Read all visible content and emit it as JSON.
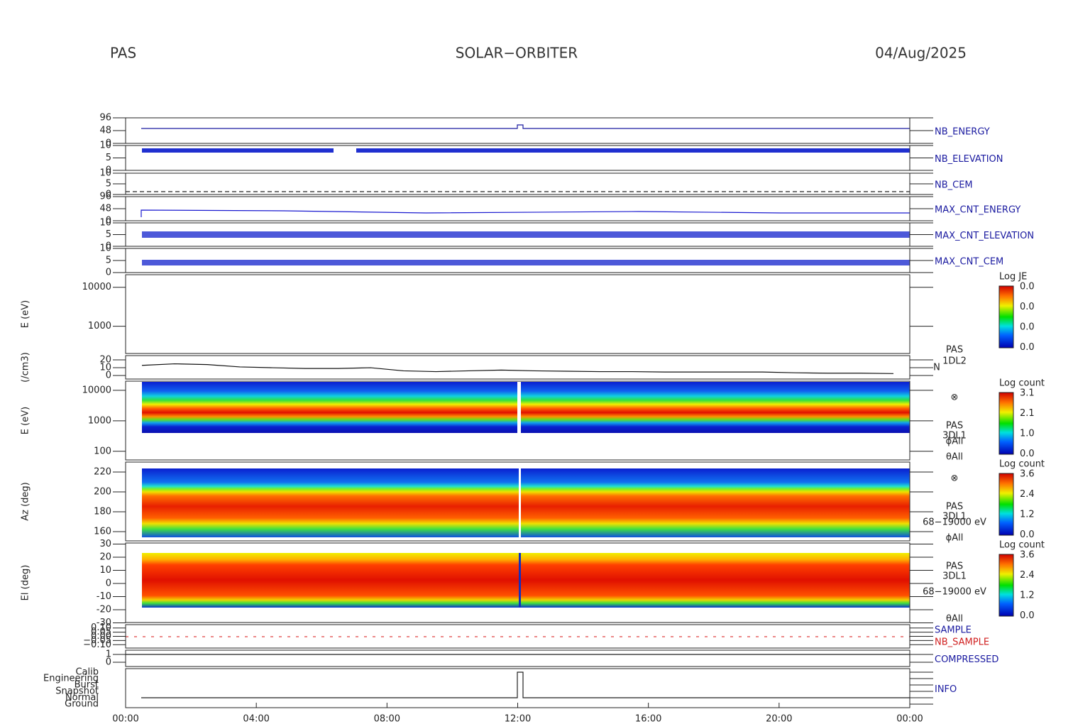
{
  "header": {
    "left": "PAS",
    "center": "SOLAR−ORBITER",
    "right": "04/Aug/2025"
  },
  "xticks": [
    "00:00",
    "04:00",
    "08:00",
    "12:00",
    "16:00",
    "20:00",
    "00:00"
  ],
  "panels": [
    {
      "label": "NB_ENERGY",
      "ylim": [
        0,
        96
      ],
      "yticks": [
        0,
        48,
        96
      ]
    },
    {
      "label": "NB_ELEVATION",
      "ylim": [
        0,
        10
      ],
      "yticks": [
        0,
        5,
        10
      ]
    },
    {
      "label": "NB_CEM",
      "ylim": [
        0,
        10
      ],
      "yticks": [
        0,
        5,
        10
      ]
    },
    {
      "label": "MAX_CNT_ENERGY",
      "ylim": [
        0,
        96
      ],
      "yticks": [
        0,
        48,
        96
      ]
    },
    {
      "label": "MAX_CNT_ELEVATION",
      "ylim": [
        0,
        10
      ],
      "yticks": [
        0,
        5,
        10
      ]
    },
    {
      "label": "MAX_CNT_CEM",
      "ylim": [
        0,
        10
      ],
      "yticks": [
        0,
        5,
        10
      ]
    },
    {
      "ylabel": "E (eV)",
      "log": true,
      "ylim": [
        200,
        21000
      ],
      "yticks": [
        1000,
        10000
      ],
      "colorbar": {
        "title": "Log JE",
        "labels": [
          "0.0",
          "0.0",
          "0.0",
          "0.0"
        ]
      }
    },
    {
      "ylabel": "(/cm3)",
      "ylim": [
        -4.5,
        25.5
      ],
      "yticks": [
        0,
        10,
        20
      ],
      "side": [
        "PAS",
        "1DL2",
        "N"
      ],
      "x": [
        0.5,
        1.5,
        2.5,
        3.5,
        4.5,
        5.5,
        6.5,
        7.5,
        8.5,
        9.5,
        10.5,
        11.5,
        12.5,
        13.5,
        14.5,
        15.5,
        16.5,
        17.5,
        18.5,
        19.5,
        20.5,
        21.5,
        22.5,
        23.5
      ],
      "values": [
        13,
        15,
        14,
        11,
        10,
        9,
        9,
        10,
        6,
        5,
        6,
        7,
        6,
        5.5,
        5,
        5,
        4.5,
        4.5,
        4.5,
        4.5,
        3.5,
        3,
        3,
        2.5
      ]
    },
    {
      "ylabel": "E (eV)",
      "log": true,
      "ylim": [
        52,
        20000
      ],
      "yticks": [
        100,
        1000,
        10000
      ],
      "side": [
        "⊗",
        "PAS",
        "3DL1",
        "ϕAll",
        "θAll"
      ],
      "colorbar": {
        "title": "Log count",
        "labels": [
          "3.1",
          "2.1",
          "1.0",
          "0.0"
        ]
      }
    },
    {
      "ylabel": "Az (deg)",
      "ylim": [
        150.7,
        230
      ],
      "yticks": [
        160,
        180,
        200,
        220
      ],
      "side": [
        "⊗",
        "PAS",
        "3DL1",
        "68−19000 eV",
        "ϕAll"
      ],
      "colorbar": {
        "title": "Log count",
        "labels": [
          "3.6",
          "2.4",
          "1.2",
          "0.0"
        ]
      }
    },
    {
      "ylabel": "El (deg)",
      "ylim": [
        -29.7,
        30.8
      ],
      "yticks": [
        -30,
        -20,
        -10,
        0,
        10,
        20,
        30
      ],
      "side": [
        "PAS",
        "3DL1",
        "68−19000 eV",
        "θAll"
      ],
      "colorbar": {
        "title": "Log count",
        "labels": [
          "3.6",
          "2.4",
          "1.2",
          "0.0"
        ]
      }
    },
    {
      "label": "SAMPLE",
      "label2": "NB_SAMPLE",
      "ylim": [
        -0.14,
        0.14
      ],
      "yticks": [
        {
          "value": -0.1,
          "label": "−0.10"
        },
        {
          "value": -0.05,
          "label": "−0.05"
        },
        {
          "value": 0,
          "label": "0.00"
        },
        {
          "value": 0.05,
          "label": "0.05"
        },
        {
          "value": 0.1,
          "label": "0.10"
        }
      ]
    },
    {
      "label": "COMPRESSED",
      "ylim": [
        -0.55,
        1.55
      ],
      "yticks": [
        0,
        1
      ]
    },
    {
      "label": "INFO",
      "categories": [
        "Calib",
        "Engineering",
        "Burst",
        "Snapshot",
        "Normal",
        "Ground"
      ]
    }
  ]
}
